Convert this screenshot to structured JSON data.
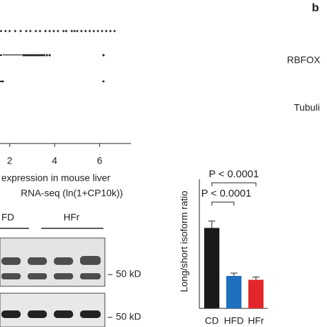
{
  "chart_data": [
    {
      "type": "strip",
      "x_label": [
        "expression in mouse liver",
        "RNA-seq (ln(1+CP10k))"
      ],
      "xlim": [
        1.57,
        7.4
      ],
      "xticks": [
        2,
        4,
        6
      ]
    },
    {
      "type": "bar",
      "y_label": "Long/short isoform ratio",
      "categories": [
        "CD",
        "HFD",
        "HFr"
      ],
      "values": [
        2.9,
        1.17,
        1.03
      ],
      "errors": [
        0.25,
        0.1,
        0.1
      ],
      "colors": [
        "#1a1a1a",
        "#1f6fbf",
        "#e3262b"
      ],
      "ylim": [
        0,
        4.6
      ],
      "annotations": [
        {
          "text": "P < 0.0001",
          "from": 0,
          "to": 2
        },
        {
          "text": "P < 0.0001",
          "from": 0,
          "to": 1
        }
      ]
    }
  ],
  "blot": {
    "groups": [
      "FD",
      "HFr"
    ],
    "size_labels": [
      "50 kD",
      "50 kD"
    ]
  },
  "panel_b": {
    "label": "b",
    "rows": [
      "RBFOX",
      "Tubuli"
    ]
  }
}
